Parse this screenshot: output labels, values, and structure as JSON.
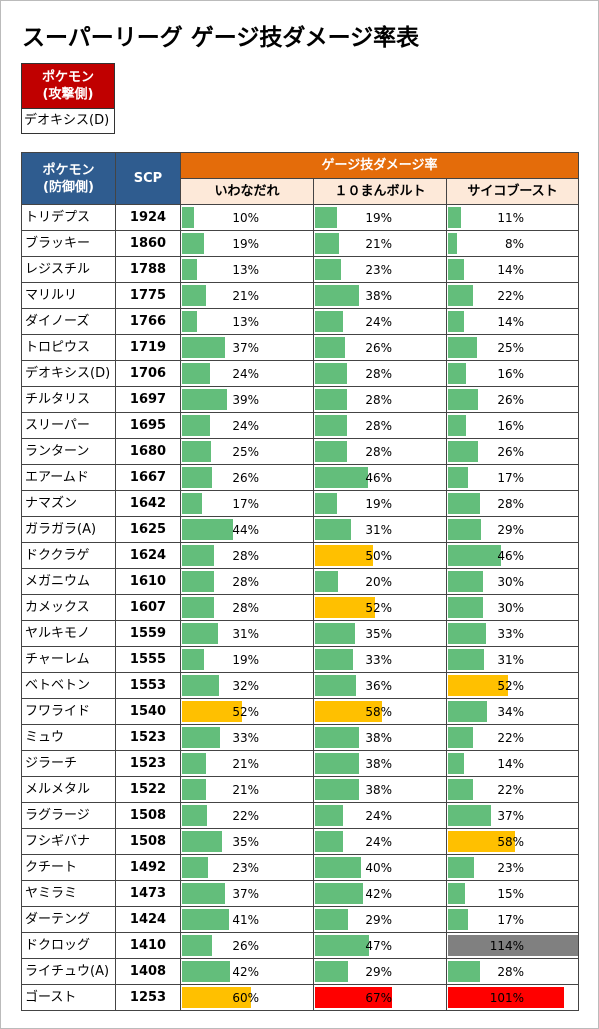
{
  "title": "スーパーリーグ ゲージ技ダメージ率表",
  "attacker": {
    "header": [
      "ポケモン",
      "(攻撃側)"
    ],
    "name": "デオキシス(D)"
  },
  "table": {
    "defender_header": [
      "ポケモン",
      "(防御側)"
    ],
    "scp_header": "SCP",
    "group_header": "ゲージ技ダメージ率",
    "moves": [
      "いわなだれ",
      "１０まんボルト",
      "サイコブースト"
    ],
    "rows": [
      [
        "トリデプス",
        "1924",
        "10%",
        "19%",
        "11%"
      ],
      [
        "ブラッキー",
        "1860",
        "19%",
        "21%",
        "8%"
      ],
      [
        "レジスチル",
        "1788",
        "13%",
        "23%",
        "14%"
      ],
      [
        "マリルリ",
        "1775",
        "21%",
        "38%",
        "22%"
      ],
      [
        "ダイノーズ",
        "1766",
        "13%",
        "24%",
        "14%"
      ],
      [
        "トロピウス",
        "1719",
        "37%",
        "26%",
        "25%"
      ],
      [
        "デオキシス(D)",
        "1706",
        "24%",
        "28%",
        "16%"
      ],
      [
        "チルタリス",
        "1697",
        "39%",
        "28%",
        "26%"
      ],
      [
        "スリーパー",
        "1695",
        "24%",
        "28%",
        "16%"
      ],
      [
        "ランターン",
        "1680",
        "25%",
        "28%",
        "26%"
      ],
      [
        "エアームド",
        "1667",
        "26%",
        "46%",
        "17%"
      ],
      [
        "ナマズン",
        "1642",
        "17%",
        "19%",
        "28%"
      ],
      [
        "ガラガラ(A)",
        "1625",
        "44%",
        "31%",
        "29%"
      ],
      [
        "ドククラゲ",
        "1624",
        "28%",
        "50%",
        "46%"
      ],
      [
        "メガニウム",
        "1610",
        "28%",
        "20%",
        "30%"
      ],
      [
        "カメックス",
        "1607",
        "28%",
        "52%",
        "30%"
      ],
      [
        "ヤルキモノ",
        "1559",
        "31%",
        "35%",
        "33%"
      ],
      [
        "チャーレム",
        "1555",
        "19%",
        "33%",
        "31%"
      ],
      [
        "ベトベトン",
        "1553",
        "32%",
        "36%",
        "52%"
      ],
      [
        "フワライド",
        "1540",
        "52%",
        "58%",
        "34%"
      ],
      [
        "ミュウ",
        "1523",
        "33%",
        "38%",
        "22%"
      ],
      [
        "ジラーチ",
        "1523",
        "21%",
        "38%",
        "14%"
      ],
      [
        "メルメタル",
        "1522",
        "21%",
        "38%",
        "22%"
      ],
      [
        "ラグラージ",
        "1508",
        "22%",
        "24%",
        "37%"
      ],
      [
        "フシギバナ",
        "1508",
        "35%",
        "24%",
        "58%"
      ],
      [
        "クチート",
        "1492",
        "23%",
        "40%",
        "23%"
      ],
      [
        "ヤミラミ",
        "1473",
        "37%",
        "42%",
        "15%"
      ],
      [
        "ダーテング",
        "1424",
        "41%",
        "29%",
        "17%"
      ],
      [
        "ドクロッグ",
        "1410",
        "26%",
        "47%",
        "114%"
      ],
      [
        "ライチュウ(A)",
        "1408",
        "42%",
        "29%",
        "28%"
      ],
      [
        "ゴースト",
        "1253",
        "60%",
        "67%",
        "101%"
      ]
    ]
  }
}
